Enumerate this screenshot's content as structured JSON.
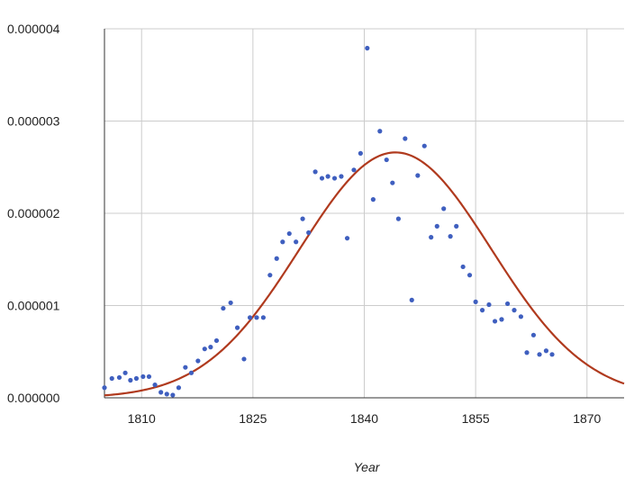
{
  "chart_data": {
    "type": "scatter",
    "title": "",
    "xlabel": "Year",
    "ylabel": "",
    "xlim": [
      1805,
      1875
    ],
    "ylim": [
      0,
      4e-06
    ],
    "grid": true,
    "legend": "none",
    "x_ticks": [
      "1810",
      "1825",
      "1840",
      "1855",
      "1870"
    ],
    "x_tick_values": [
      1810,
      1825,
      1840,
      1855,
      1870
    ],
    "y_ticks": [
      "0.000000",
      "0.000001",
      "0.000002",
      "0.000003",
      "0.000004"
    ],
    "y_tick_values": [
      0,
      1e-06,
      2e-06,
      3e-06,
      4e-06
    ],
    "series": [
      {
        "kind": "points",
        "color": "#3f5fbf",
        "points": [
          [
            1806,
            2.1e-07
          ],
          [
            1807,
            2.2e-07
          ],
          [
            1807.8,
            2.7e-07
          ],
          [
            1808.5,
            1.9e-07
          ],
          [
            1809.3,
            2.1e-07
          ],
          [
            1810.2,
            2.3e-07
          ],
          [
            1811,
            2.3e-07
          ],
          [
            1811.8,
            1.4e-07
          ],
          [
            1812.6,
            6e-08
          ],
          [
            1813.4,
            4e-08
          ],
          [
            1814.2,
            3e-08
          ],
          [
            1815,
            1.1e-07
          ],
          [
            1815.9,
            3.3e-07
          ],
          [
            1816.7,
            2.7e-07
          ],
          [
            1817.6,
            4e-07
          ],
          [
            1818.5,
            5.3e-07
          ],
          [
            1819.3,
            5.5e-07
          ],
          [
            1820.1,
            6.2e-07
          ],
          [
            1821,
            9.7e-07
          ],
          [
            1822,
            1.03e-06
          ],
          [
            1822.9,
            7.6e-07
          ],
          [
            1823.8,
            4.2e-07
          ],
          [
            1824.6,
            8.7e-07
          ],
          [
            1825.5,
            8.7e-07
          ],
          [
            1826.4,
            8.7e-07
          ],
          [
            1827.3,
            1.33e-06
          ],
          [
            1828.2,
            1.51e-06
          ],
          [
            1829,
            1.69e-06
          ],
          [
            1829.9,
            1.78e-06
          ],
          [
            1830.8,
            1.69e-06
          ],
          [
            1831.7,
            1.94e-06
          ],
          [
            1832.5,
            1.79e-06
          ],
          [
            1833.4,
            2.45e-06
          ],
          [
            1834.3,
            2.38e-06
          ],
          [
            1835.1,
            2.4e-06
          ],
          [
            1836,
            2.38e-06
          ],
          [
            1836.9,
            2.4e-06
          ],
          [
            1837.7,
            1.73e-06
          ],
          [
            1838.6,
            2.47e-06
          ],
          [
            1839.5,
            2.65e-06
          ],
          [
            1840.4,
            3.79e-06
          ],
          [
            1841.2,
            2.15e-06
          ],
          [
            1842.1,
            2.89e-06
          ],
          [
            1843,
            2.58e-06
          ],
          [
            1843.8,
            2.33e-06
          ],
          [
            1844.6,
            1.94e-06
          ],
          [
            1845.5,
            2.81e-06
          ],
          [
            1846.4,
            1.06e-06
          ],
          [
            1847.2,
            2.41e-06
          ],
          [
            1848.1,
            2.73e-06
          ],
          [
            1849,
            1.74e-06
          ],
          [
            1849.8,
            1.86e-06
          ],
          [
            1850.7,
            2.05e-06
          ],
          [
            1851.6,
            1.75e-06
          ],
          [
            1852.4,
            1.86e-06
          ],
          [
            1853.3,
            1.42e-06
          ],
          [
            1854.2,
            1.33e-06
          ],
          [
            1855,
            1.04e-06
          ],
          [
            1855.9,
            9.5e-07
          ],
          [
            1856.8,
            1.01e-06
          ],
          [
            1857.6,
            8.3e-07
          ],
          [
            1858.5,
            8.5e-07
          ],
          [
            1859.3,
            1.02e-06
          ],
          [
            1860.2,
            9.5e-07
          ],
          [
            1861.1,
            8.8e-07
          ],
          [
            1861.9,
            4.9e-07
          ],
          [
            1862.8,
            6.8e-07
          ],
          [
            1863.6,
            4.7e-07
          ],
          [
            1864.5,
            5.1e-07
          ],
          [
            1865.3,
            4.7e-07
          ],
          [
            1805,
            1.1e-07
          ]
        ]
      },
      {
        "kind": "trend",
        "color": "#b03a1e",
        "peak_x": 1844.2,
        "peak_y": 2.66e-06,
        "sigma": 12.9
      }
    ]
  }
}
